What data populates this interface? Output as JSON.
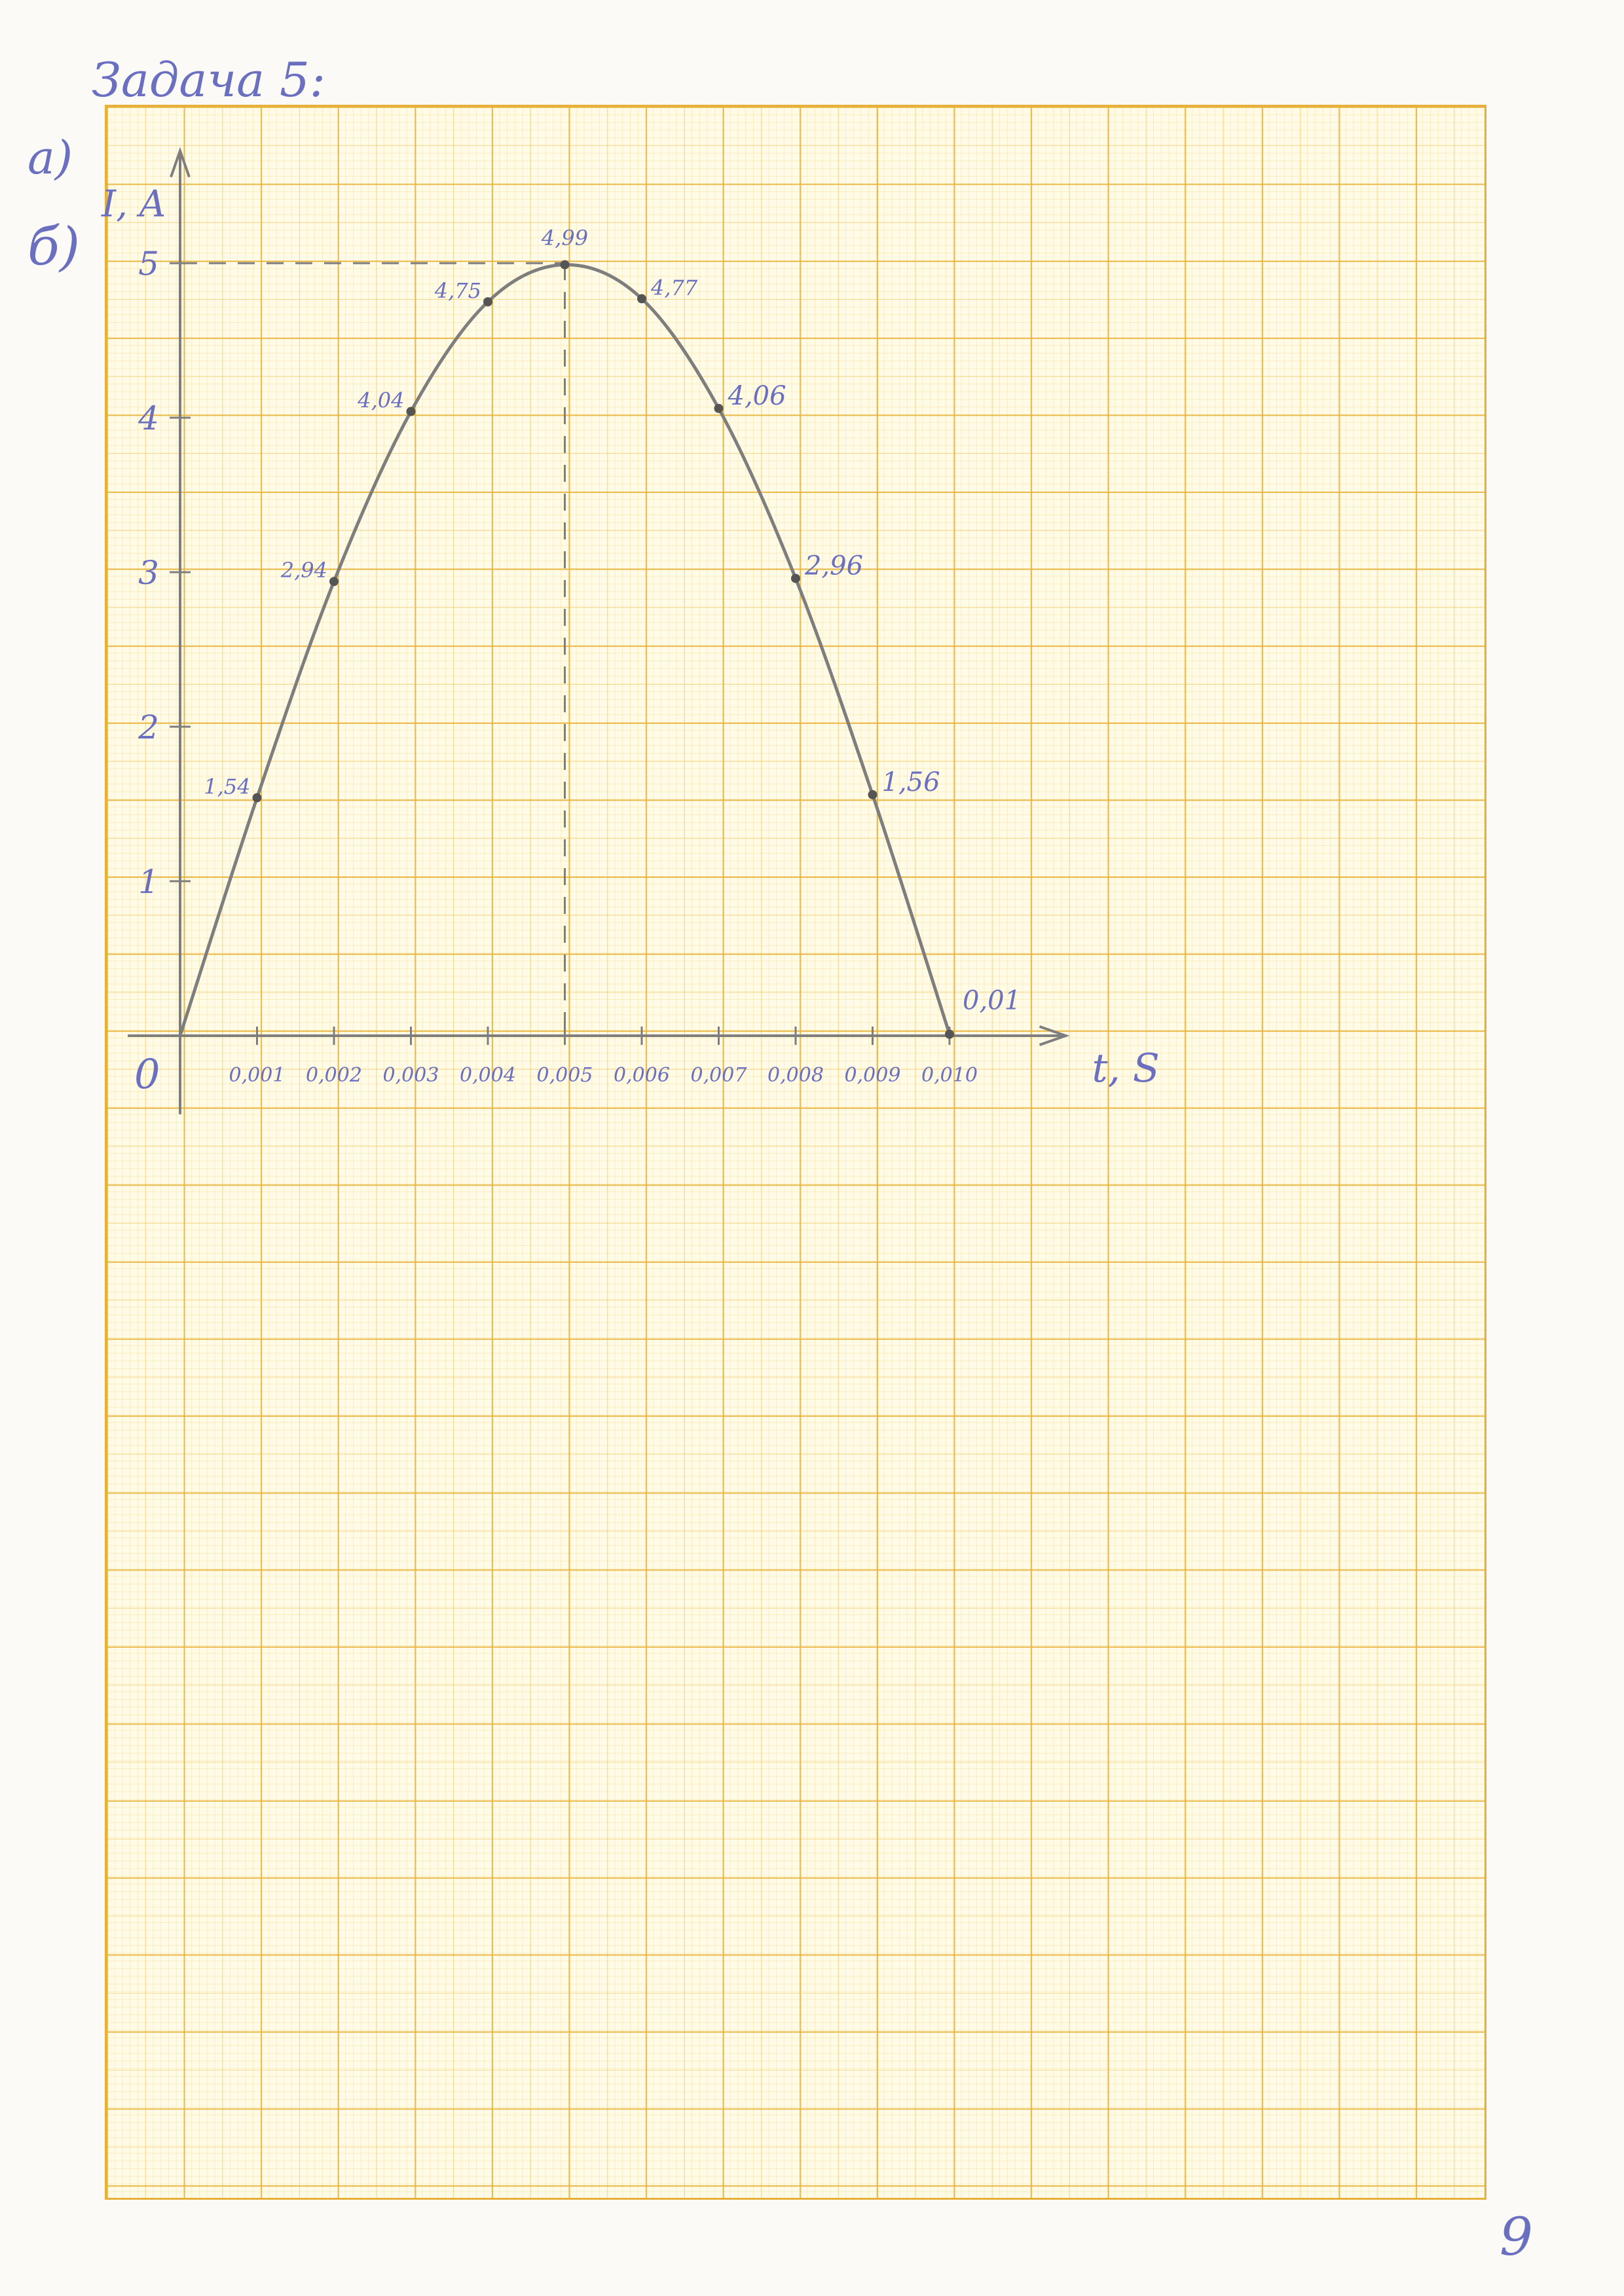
{
  "page": {
    "title": "Задача 5:",
    "part_a": "а)",
    "part_b": "б)",
    "page_number": "9"
  },
  "colors": {
    "pencil": "#7e7e7e",
    "ink": "#6a6fc0",
    "grid": "#e8b23a"
  },
  "chart_data": {
    "type": "line",
    "title": "",
    "xlabel": "t, S",
    "ylabel": "I, A",
    "origin_label": "0",
    "xlim": [
      0,
      0.011
    ],
    "ylim": [
      0,
      5.6
    ],
    "x_ticks": [
      0.001,
      0.002,
      0.003,
      0.004,
      0.005,
      0.006,
      0.007,
      0.008,
      0.009,
      0.01
    ],
    "x_tick_labels": [
      "0,001",
      "0,002",
      "0,003",
      "0,004",
      "0,005",
      "0,006",
      "0,007",
      "0,008",
      "0,009",
      "0,010"
    ],
    "y_ticks": [
      1,
      2,
      3,
      4,
      5
    ],
    "y_tick_labels": [
      "1",
      "2",
      "3",
      "4",
      "5"
    ],
    "grid": true,
    "series": [
      {
        "x": [
          0,
          0.001,
          0.002,
          0.003,
          0.004,
          0.005,
          0.006,
          0.007,
          0.008,
          0.009,
          0.01
        ],
        "y": [
          0,
          1.54,
          2.94,
          4.04,
          4.75,
          4.99,
          4.77,
          4.06,
          2.96,
          1.56,
          0.01
        ],
        "labels": [
          "",
          "1,54",
          "2,94",
          "4,04",
          "4,75",
          "4,99",
          "4,77",
          "4,06",
          "2,96",
          "1,56",
          "0,01"
        ]
      }
    ],
    "annotations": [
      {
        "type": "dashed-guide",
        "x": 0.005,
        "y": 5
      }
    ]
  }
}
